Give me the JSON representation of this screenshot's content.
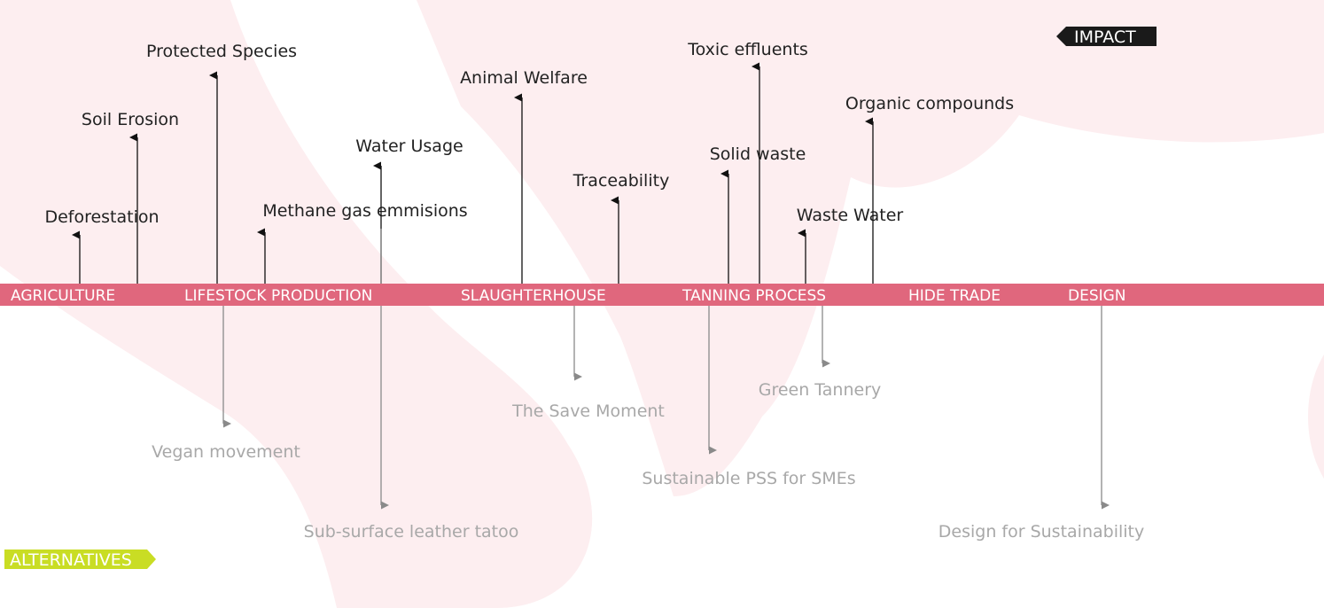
{
  "legend": {
    "impact": "IMPACT",
    "alternatives": "ALTERNATIVES"
  },
  "stages": [
    "AGRICULTURE",
    "LIFESTOCK PRODUCTION",
    "SLAUGHTERHOUSE",
    "TANNING PROCESS",
    "HIDE TRADE",
    "DESIGN"
  ],
  "impacts": [
    "Deforestation",
    "Soil Erosion",
    "Protected Species",
    "Methane gas emmisions",
    "Water Usage",
    "Animal Welfare",
    "Traceability",
    "Solid waste",
    "Toxic effluents",
    "Waste Water",
    "Organic compounds"
  ],
  "alternatives": [
    "Vegan movement",
    "The Save Moment",
    "Sub-surface leather tatoo",
    "Green Tannery",
    "Sustainable PSS for SMEs",
    "Design for Sustainability"
  ]
}
